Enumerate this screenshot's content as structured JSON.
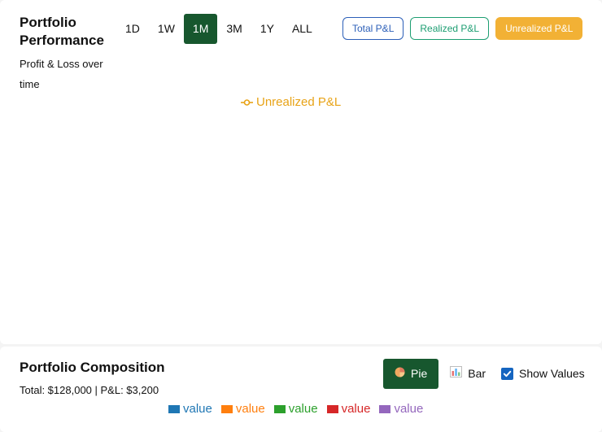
{
  "performance": {
    "title": "Portfolio Performance",
    "subtitle": "Profit & Loss over time",
    "ranges": [
      {
        "label": "1D",
        "active": false
      },
      {
        "label": "1W",
        "active": false
      },
      {
        "label": "1M",
        "active": true
      },
      {
        "label": "3M",
        "active": false
      },
      {
        "label": "1Y",
        "active": false
      },
      {
        "label": "ALL",
        "active": false
      }
    ],
    "filters": [
      {
        "label": "Total P&L",
        "color": "#2c5fb8",
        "active": false
      },
      {
        "label": "Realized P&L",
        "color": "#1d9e72",
        "active": false
      },
      {
        "label": "Unrealized P&L",
        "color": "#f2b135",
        "active": true
      }
    ],
    "legend": {
      "label": "Unrealized P&L",
      "color": "#e8a317",
      "icon": "line-circle-marker-icon"
    }
  },
  "composition": {
    "title": "Portfolio Composition",
    "summary": "Total: $128,000 | P&L: $3,200",
    "toggles": [
      {
        "label": "Pie",
        "icon": "pie-emoji-icon",
        "active": true
      },
      {
        "label": "Bar",
        "icon": "bar-chart-emoji-icon",
        "active": false
      }
    ],
    "show_values": {
      "label": "Show Values",
      "checked": true,
      "color": "#1565c0"
    },
    "legend": [
      {
        "label": "value",
        "color": "#1f77b4"
      },
      {
        "label": "value",
        "color": "#ff7f0e"
      },
      {
        "label": "value",
        "color": "#2ca02c"
      },
      {
        "label": "value",
        "color": "#d62728"
      },
      {
        "label": "value",
        "color": "#9467bd"
      }
    ]
  },
  "colors": {
    "accent": "#17572e"
  }
}
